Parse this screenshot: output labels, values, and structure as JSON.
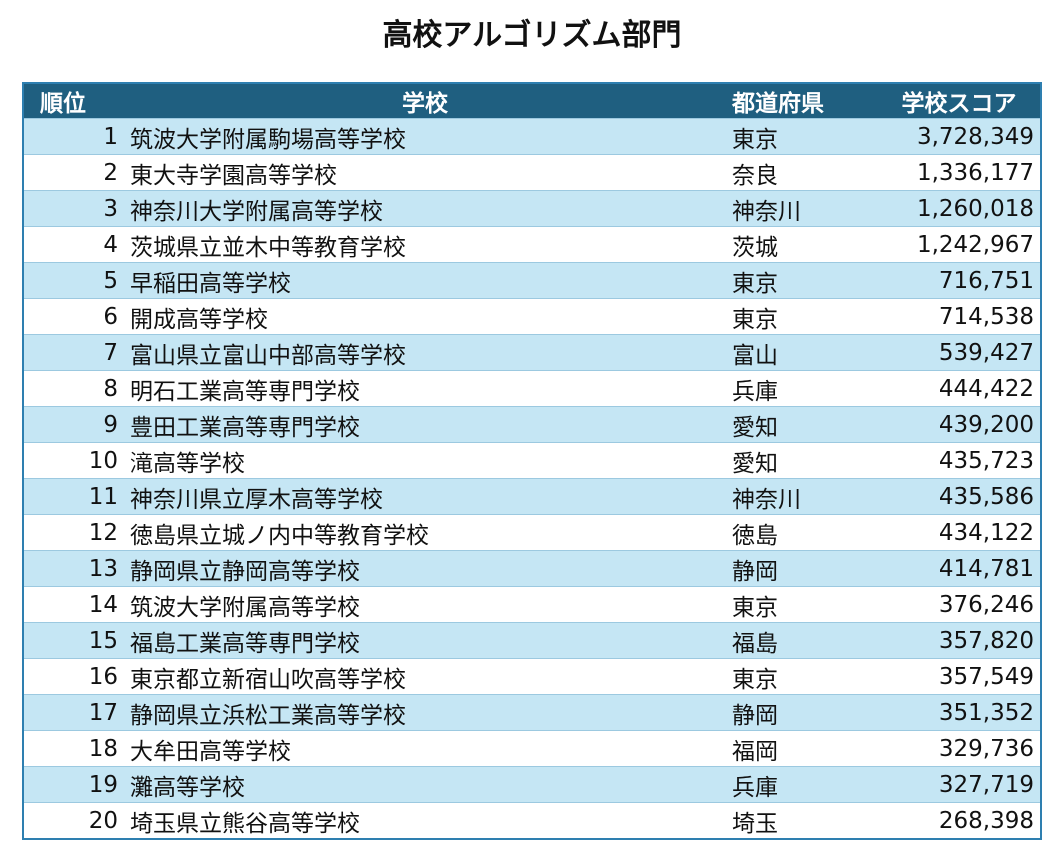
{
  "title": "高校アルゴリズム部門",
  "table": {
    "headers": [
      "順位",
      "学校",
      "都道府県",
      "学校スコア"
    ],
    "rows": [
      [
        "1",
        "筑波大学附属駒場高等学校",
        "東京",
        "3,728,349"
      ],
      [
        "2",
        "東大寺学園高等学校",
        "奈良",
        "1,336,177"
      ],
      [
        "3",
        "神奈川大学附属高等学校",
        "神奈川",
        "1,260,018"
      ],
      [
        "4",
        "茨城県立並木中等教育学校",
        "茨城",
        "1,242,967"
      ],
      [
        "5",
        "早稲田高等学校",
        "東京",
        "716,751"
      ],
      [
        "6",
        "開成高等学校",
        "東京",
        "714,538"
      ],
      [
        "7",
        "富山県立富山中部高等学校",
        "富山",
        "539,427"
      ],
      [
        "8",
        "明石工業高等専門学校",
        "兵庫",
        "444,422"
      ],
      [
        "9",
        "豊田工業高等専門学校",
        "愛知",
        "439,200"
      ],
      [
        "10",
        "滝高等学校",
        "愛知",
        "435,723"
      ],
      [
        "11",
        "神奈川県立厚木高等学校",
        "神奈川",
        "435,586"
      ],
      [
        "12",
        "徳島県立城ノ内中等教育学校",
        "徳島",
        "434,122"
      ],
      [
        "13",
        "静岡県立静岡高等学校",
        "静岡",
        "414,781"
      ],
      [
        "14",
        "筑波大学附属高等学校",
        "東京",
        "376,246"
      ],
      [
        "15",
        "福島工業高等専門学校",
        "福島",
        "357,820"
      ],
      [
        "16",
        "東京都立新宿山吹高等学校",
        "東京",
        "357,549"
      ],
      [
        "17",
        "静岡県立浜松工業高等学校",
        "静岡",
        "351,352"
      ],
      [
        "18",
        "大牟田高等学校",
        "福岡",
        "329,736"
      ],
      [
        "19",
        "灘高等学校",
        "兵庫",
        "327,719"
      ],
      [
        "20",
        "埼玉県立熊谷高等学校",
        "埼玉",
        "268,398"
      ]
    ]
  }
}
